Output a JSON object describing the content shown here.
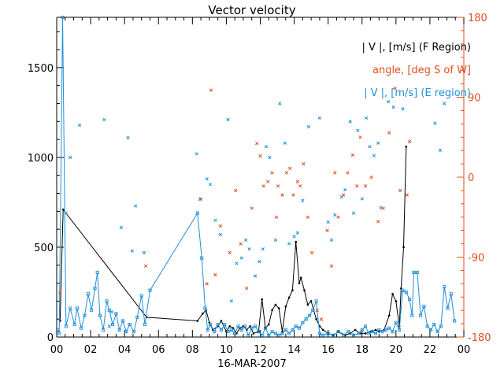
{
  "chart_data": {
    "type": "scatter",
    "title": "Vector velocity",
    "xlabel": "16-MAR-2007",
    "x_tick_labels": [
      "00",
      "02",
      "04",
      "06",
      "08",
      "10",
      "12",
      "14",
      "16",
      "18",
      "20",
      "22",
      "00"
    ],
    "x_range_hours": [
      0,
      24
    ],
    "y_left": {
      "ylim": [
        0,
        1780
      ],
      "ticks": [
        0,
        500,
        1000,
        1500
      ],
      "tick_labels": [
        "0",
        "500",
        "1000",
        "1500"
      ]
    },
    "y_right": {
      "ylim": [
        -180,
        180
      ],
      "ticks": [
        -180,
        -90,
        0,
        90,
        180
      ],
      "tick_labels": [
        "-180",
        "-90",
        "0",
        "90",
        "180"
      ]
    },
    "legend": [
      {
        "label": "| V |, [m/s] (F Region)",
        "color": "#000000"
      },
      {
        "label": "angle, [deg S of W]",
        "color": "#e0501e"
      },
      {
        "label": "| V |, [m/s] (E region)",
        "color": "#1f8fd8"
      }
    ],
    "series": [
      {
        "name": "F Region |V|",
        "axis": "left",
        "color": "#000000",
        "style": "line-dot",
        "points": [
          [
            0.2,
            90
          ],
          [
            0.38,
            710
          ],
          [
            5.3,
            110
          ],
          [
            8.3,
            90
          ],
          [
            8.6,
            130
          ],
          [
            8.8,
            150
          ],
          [
            9.0,
            80
          ],
          [
            9.2,
            40
          ],
          [
            9.5,
            60
          ],
          [
            9.7,
            90
          ],
          [
            10.0,
            30
          ],
          [
            10.2,
            60
          ],
          [
            10.4,
            50
          ],
          [
            10.6,
            20
          ],
          [
            10.8,
            50
          ],
          [
            11.0,
            60
          ],
          [
            11.2,
            40
          ],
          [
            11.4,
            60
          ],
          [
            11.6,
            20
          ],
          [
            11.9,
            30
          ],
          [
            12.1,
            210
          ],
          [
            12.3,
            50
          ],
          [
            12.5,
            70
          ],
          [
            12.7,
            150
          ],
          [
            12.9,
            180
          ],
          [
            13.1,
            160
          ],
          [
            13.3,
            30
          ],
          [
            13.5,
            170
          ],
          [
            13.7,
            220
          ],
          [
            13.9,
            260
          ],
          [
            14.1,
            530
          ],
          [
            14.3,
            300
          ],
          [
            14.4,
            330
          ],
          [
            14.6,
            260
          ],
          [
            14.8,
            180
          ],
          [
            15.0,
            200
          ],
          [
            15.3,
            100
          ],
          [
            15.5,
            60
          ],
          [
            15.7,
            40
          ],
          [
            16.0,
            20
          ],
          [
            16.3,
            10
          ],
          [
            16.6,
            30
          ],
          [
            17.0,
            10
          ],
          [
            17.3,
            20
          ],
          [
            17.6,
            40
          ],
          [
            17.9,
            20
          ],
          [
            18.2,
            20
          ],
          [
            18.5,
            30
          ],
          [
            18.8,
            40
          ],
          [
            19.0,
            30
          ],
          [
            19.3,
            40
          ],
          [
            19.6,
            120
          ],
          [
            19.8,
            240
          ],
          [
            20.0,
            200
          ],
          [
            20.2,
            60
          ],
          [
            20.3,
            270
          ],
          [
            20.45,
            500
          ],
          [
            20.6,
            1060
          ]
        ]
      },
      {
        "name": "E region |V| (line)",
        "axis": "left",
        "color": "#1f8fd8",
        "style": "line-square",
        "points": [
          [
            0.05,
            40
          ],
          [
            0.15,
            20
          ],
          [
            0.35,
            1780
          ],
          [
            0.55,
            60
          ],
          [
            0.8,
            160
          ],
          [
            1.05,
            70
          ],
          [
            1.2,
            160
          ],
          [
            1.45,
            50
          ],
          [
            1.65,
            120
          ],
          [
            1.85,
            240
          ],
          [
            2.05,
            150
          ],
          [
            2.25,
            270
          ],
          [
            2.4,
            360
          ],
          [
            2.55,
            120
          ],
          [
            2.75,
            40
          ],
          [
            2.95,
            200
          ],
          [
            3.1,
            150
          ],
          [
            3.3,
            70
          ],
          [
            3.5,
            130
          ],
          [
            3.7,
            40
          ],
          [
            3.9,
            90
          ],
          [
            4.1,
            30
          ],
          [
            4.3,
            70
          ],
          [
            4.55,
            30
          ],
          [
            4.75,
            110
          ],
          [
            5.0,
            230
          ],
          [
            5.2,
            70
          ],
          [
            5.5,
            260
          ],
          [
            8.3,
            690
          ],
          [
            8.55,
            440
          ],
          [
            8.75,
            160
          ],
          [
            8.9,
            40
          ],
          [
            9.05,
            70
          ],
          [
            9.3,
            30
          ],
          [
            9.5,
            70
          ],
          [
            9.7,
            40
          ],
          [
            9.9,
            70
          ],
          [
            10.1,
            30
          ],
          [
            10.3,
            40
          ],
          [
            10.5,
            20
          ],
          [
            10.7,
            60
          ],
          [
            10.9,
            40
          ],
          [
            11.1,
            60
          ],
          [
            11.3,
            10
          ],
          [
            11.5,
            50
          ],
          [
            11.7,
            60
          ],
          [
            11.9,
            30
          ],
          [
            12.1,
            10
          ],
          [
            12.3,
            50
          ],
          [
            12.5,
            10
          ],
          [
            12.7,
            30
          ],
          [
            12.9,
            20
          ],
          [
            13.1,
            10
          ],
          [
            13.3,
            20
          ],
          [
            13.5,
            40
          ],
          [
            13.7,
            20
          ],
          [
            13.9,
            40
          ],
          [
            14.1,
            60
          ],
          [
            14.3,
            50
          ],
          [
            14.5,
            80
          ],
          [
            14.7,
            100
          ],
          [
            14.9,
            120
          ],
          [
            15.1,
            150
          ],
          [
            15.3,
            200
          ],
          [
            15.5,
            20
          ],
          [
            15.7,
            10
          ],
          [
            16.0,
            20
          ],
          [
            16.3,
            10
          ],
          [
            16.6,
            30
          ],
          [
            16.9,
            10
          ],
          [
            17.2,
            30
          ],
          [
            17.5,
            10
          ],
          [
            17.8,
            20
          ],
          [
            18.0,
            40
          ],
          [
            18.2,
            60
          ],
          [
            18.4,
            20
          ],
          [
            18.6,
            30
          ],
          [
            18.8,
            20
          ],
          [
            19.0,
            40
          ],
          [
            19.2,
            30
          ],
          [
            19.4,
            40
          ],
          [
            19.6,
            50
          ],
          [
            19.8,
            30
          ],
          [
            20.0,
            80
          ],
          [
            20.2,
            40
          ],
          [
            20.4,
            260
          ],
          [
            20.6,
            250
          ],
          [
            20.8,
            210
          ],
          [
            20.95,
            120
          ],
          [
            21.05,
            360
          ],
          [
            21.25,
            360
          ],
          [
            21.45,
            120
          ],
          [
            21.65,
            170
          ],
          [
            21.85,
            60
          ],
          [
            22.05,
            40
          ],
          [
            22.25,
            70
          ],
          [
            22.45,
            30
          ],
          [
            22.65,
            60
          ],
          [
            22.85,
            280
          ],
          [
            23.05,
            160
          ],
          [
            23.25,
            240
          ],
          [
            23.45,
            90
          ]
        ]
      },
      {
        "name": "E region |V| (crosses)",
        "axis": "left",
        "color": "#1f8fd8",
        "style": "cross",
        "points": [
          [
            0.55,
            690
          ],
          [
            0.8,
            1000
          ],
          [
            1.35,
            1180
          ],
          [
            2.8,
            1210
          ],
          [
            3.1,
            60
          ],
          [
            3.25,
            140
          ],
          [
            3.8,
            610
          ],
          [
            4.2,
            1110
          ],
          [
            4.45,
            480
          ],
          [
            4.65,
            730
          ],
          [
            5.15,
            470
          ],
          [
            8.25,
            1020
          ],
          [
            8.5,
            770
          ],
          [
            8.85,
            880
          ],
          [
            9.05,
            850
          ],
          [
            9.35,
            650
          ],
          [
            9.65,
            570
          ],
          [
            10.1,
            1210
          ],
          [
            10.3,
            200
          ],
          [
            10.6,
            410
          ],
          [
            10.9,
            440
          ],
          [
            11.15,
            540
          ],
          [
            11.35,
            490
          ],
          [
            11.7,
            340
          ],
          [
            11.95,
            420
          ],
          [
            12.15,
            490
          ],
          [
            12.35,
            1060
          ],
          [
            12.55,
            1000
          ],
          [
            12.9,
            540
          ],
          [
            13.15,
            1300
          ],
          [
            13.45,
            1080
          ],
          [
            13.7,
            520
          ],
          [
            14.0,
            560
          ],
          [
            14.2,
            580
          ],
          [
            14.5,
            760
          ],
          [
            14.85,
            1170
          ],
          [
            15.5,
            1220
          ],
          [
            16.0,
            640
          ],
          [
            16.2,
            540
          ],
          [
            16.4,
            680
          ],
          [
            16.8,
            780
          ],
          [
            17.0,
            820
          ],
          [
            17.3,
            1200
          ],
          [
            17.5,
            690
          ],
          [
            17.75,
            1150
          ],
          [
            18.0,
            770
          ],
          [
            18.25,
            1220
          ],
          [
            18.45,
            1060
          ],
          [
            18.7,
            1010
          ],
          [
            18.95,
            1080
          ],
          [
            19.1,
            720
          ],
          [
            19.55,
            1310
          ],
          [
            19.85,
            1280
          ],
          [
            20.4,
            1270
          ],
          [
            22.3,
            1190
          ],
          [
            22.6,
            1040
          ],
          [
            22.85,
            1300
          ]
        ]
      },
      {
        "name": "angle",
        "axis": "right",
        "color": "#e0501e",
        "style": "cross",
        "points": [
          [
            0.2,
            -130
          ],
          [
            5.25,
            -100
          ],
          [
            8.45,
            -25
          ],
          [
            8.85,
            -120
          ],
          [
            9.1,
            98
          ],
          [
            9.35,
            -110
          ],
          [
            9.65,
            -55
          ],
          [
            10.2,
            -85
          ],
          [
            10.55,
            -15
          ],
          [
            10.85,
            -75
          ],
          [
            11.2,
            -125
          ],
          [
            11.5,
            -35
          ],
          [
            11.8,
            38
          ],
          [
            12.0,
            24
          ],
          [
            12.2,
            -10
          ],
          [
            12.45,
            -5
          ],
          [
            12.7,
            5
          ],
          [
            12.95,
            -45
          ],
          [
            13.05,
            -10
          ],
          [
            13.3,
            -20
          ],
          [
            13.55,
            5
          ],
          [
            13.75,
            10
          ],
          [
            13.95,
            -20
          ],
          [
            14.2,
            -5
          ],
          [
            14.35,
            -10
          ],
          [
            14.55,
            15
          ],
          [
            14.8,
            -45
          ],
          [
            15.05,
            -85
          ],
          [
            15.35,
            -150
          ],
          [
            15.6,
            -160
          ],
          [
            15.95,
            -60
          ],
          [
            16.2,
            -100
          ],
          [
            16.4,
            5
          ],
          [
            16.6,
            -45
          ],
          [
            16.9,
            -20
          ],
          [
            17.15,
            5
          ],
          [
            17.45,
            25
          ],
          [
            17.7,
            -10
          ],
          [
            17.9,
            45
          ],
          [
            18.2,
            -10
          ],
          [
            18.55,
            0
          ],
          [
            18.95,
            -50
          ],
          [
            19.25,
            -35
          ],
          [
            19.6,
            50
          ],
          [
            19.95,
            100
          ],
          [
            20.25,
            -15
          ],
          [
            20.65,
            -20
          ],
          [
            20.8,
            40
          ]
        ]
      }
    ]
  }
}
